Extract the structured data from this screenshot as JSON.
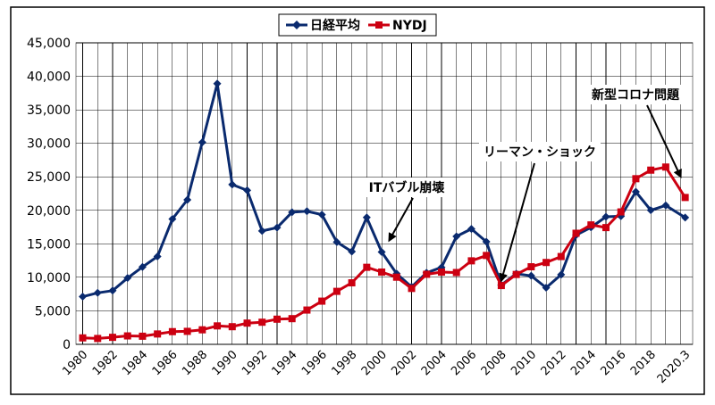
{
  "chart_data": {
    "type": "line",
    "title": "",
    "xlabel": "",
    "ylabel": "",
    "ylim": [
      0,
      45000
    ],
    "y_ticks": [
      "0",
      "5,000",
      "10,000",
      "15,000",
      "20,000",
      "25,000",
      "30,000",
      "35,000",
      "40,000",
      "45,000"
    ],
    "x_tick_labels": [
      "1980",
      "1982",
      "1984",
      "1986",
      "1988",
      "1990",
      "1992",
      "1994",
      "1996",
      "1998",
      "2000",
      "2002",
      "2004",
      "2006",
      "2008",
      "2010",
      "2012",
      "2014",
      "2016",
      "2018",
      "2020.3"
    ],
    "x": [
      1980,
      1981,
      1982,
      1983,
      1984,
      1985,
      1986,
      1987,
      1988,
      1989,
      1990,
      1991,
      1992,
      1993,
      1994,
      1995,
      1996,
      1997,
      1998,
      1999,
      2000,
      2001,
      2002,
      2003,
      2004,
      2005,
      2006,
      2007,
      2008,
      2009,
      2010,
      2011,
      2012,
      2013,
      2014,
      2015,
      2016,
      2017,
      2018,
      2019,
      2020.3
    ],
    "grid": true,
    "legend_position": "top-center",
    "series": [
      {
        "name": "日経平均",
        "color": "#0a2a6e",
        "marker": "diamond",
        "values": [
          7116,
          7682,
          8017,
          9894,
          11543,
          13113,
          18701,
          21564,
          30159,
          38916,
          23849,
          22984,
          16925,
          17417,
          19723,
          19868,
          19361,
          15259,
          13842,
          18934,
          13786,
          10543,
          8579,
          10677,
          11489,
          16111,
          17226,
          15308,
          8860,
          10546,
          10229,
          8455,
          10395,
          16291,
          17451,
          19034,
          19114,
          22765,
          20015,
          20730,
          18917
        ]
      },
      {
        "name": "NYDJ",
        "color": "#cc0011",
        "marker": "square",
        "values": [
          964,
          875,
          1047,
          1259,
          1212,
          1547,
          1896,
          1939,
          2169,
          2753,
          2634,
          3169,
          3301,
          3754,
          3834,
          5117,
          6448,
          7908,
          9181,
          11497,
          10787,
          10022,
          8342,
          10454,
          10783,
          10718,
          12463,
          13265,
          8776,
          10428,
          11578,
          12218,
          13104,
          16577,
          17823,
          17425,
          19763,
          24719,
          25999,
          26460,
          21917
        ]
      }
    ],
    "annotations": [
      {
        "text": "ITバブル崩壊",
        "x": 2000.5,
        "y": 15500
      },
      {
        "text": "リーマン・ショック",
        "x": 2008,
        "y": 9500
      },
      {
        "text": "新型コロナ問題",
        "x": 2020,
        "y": 25000
      }
    ]
  }
}
